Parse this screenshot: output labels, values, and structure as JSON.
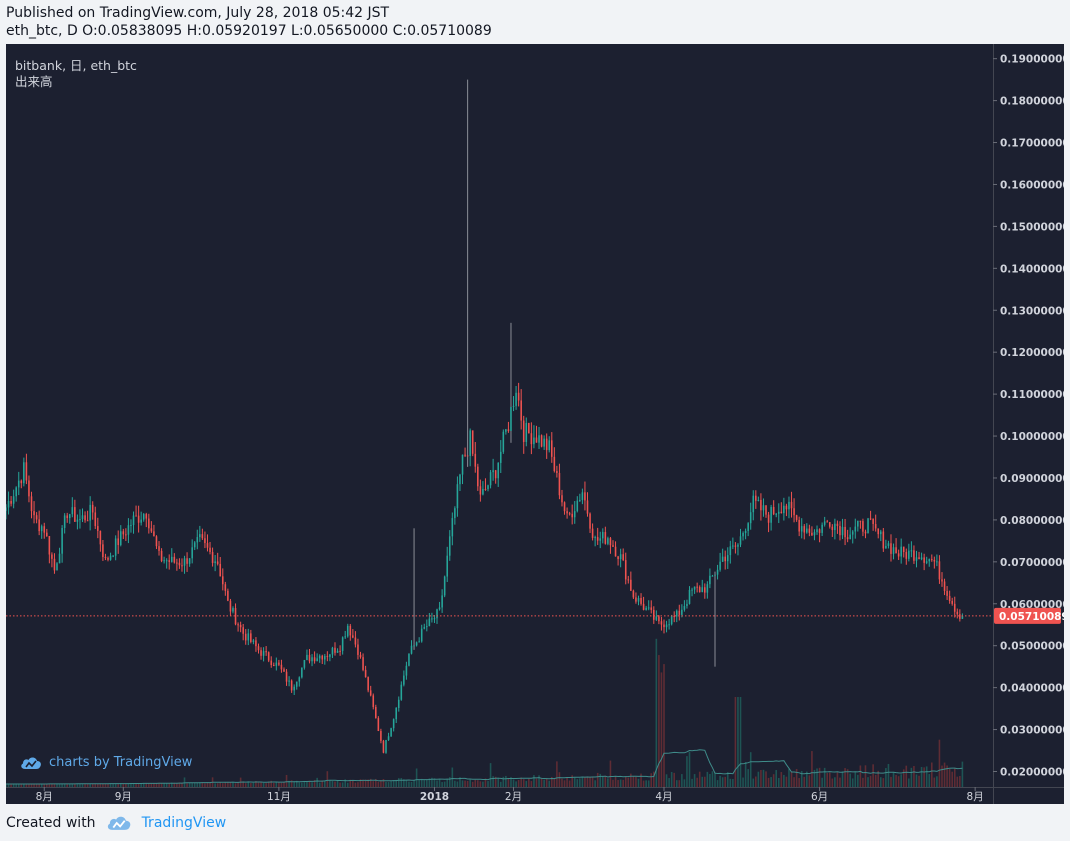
{
  "header": {
    "published": "Published on TradingView.com, July 28, 2018 05:42 JST",
    "ohlc": "eth_btc, D O:0.05838095 H:0.05920197 L:0.05650000 C:0.05710089"
  },
  "legend": {
    "symbol_line": "bitbank, 日, eth_btc",
    "volume_label": "出来高"
  },
  "watermark": {
    "text": "charts by TradingView",
    "icon": "tradingview-cloud-icon"
  },
  "footer": {
    "created_with": "Created with",
    "brand": "TradingView",
    "icon": "tradingview-cloud-icon"
  },
  "colors": {
    "background": "#1c2030",
    "up": "#26a69a",
    "down": "#ef5350",
    "price_line": "#ef5350",
    "volume_ma": "#3f8c8a",
    "axis_text": "#d1d4dc"
  },
  "chart_data": {
    "type": "candlestick",
    "symbol": "eth_btc",
    "exchange": "bitbank",
    "interval": "D",
    "last_price": "0.05710089",
    "y_ticks": [
      "0.02000000",
      "0.03000000",
      "0.04000000",
      "0.05000000",
      "0.06000000",
      "0.07000000",
      "0.08000000",
      "0.09000000",
      "0.10000000",
      "0.11000000",
      "0.12000000",
      "0.13000000",
      "0.14000000",
      "0.15000000",
      "0.16000000",
      "0.17000000",
      "0.18000000",
      "0.19000000"
    ],
    "ylim": [
      0.0163,
      0.1935
    ],
    "x_start": "2017-07-17",
    "x_end": "2018-08-08",
    "x_ticks": [
      {
        "label": "8月",
        "date": "2017-08-01"
      },
      {
        "label": "9月",
        "date": "2017-09-01"
      },
      {
        "label": "11月",
        "date": "2017-11-01"
      },
      {
        "label": "2018",
        "date": "2018-01-01"
      },
      {
        "label": "2月",
        "date": "2018-02-01"
      },
      {
        "label": "4月",
        "date": "2018-04-01"
      },
      {
        "label": "6月",
        "date": "2018-06-01"
      },
      {
        "label": "8月",
        "date": "2018-08-01"
      }
    ],
    "close_path": [
      [
        "2017-07-17",
        0.083
      ],
      [
        "2017-07-21",
        0.088
      ],
      [
        "2017-07-24",
        0.092
      ],
      [
        "2017-07-28",
        0.08
      ],
      [
        "2017-08-01",
        0.078
      ],
      [
        "2017-08-05",
        0.068
      ],
      [
        "2017-08-10",
        0.082
      ],
      [
        "2017-08-15",
        0.08
      ],
      [
        "2017-08-20",
        0.082
      ],
      [
        "2017-08-25",
        0.07
      ],
      [
        "2017-08-30",
        0.075
      ],
      [
        "2017-09-05",
        0.08
      ],
      [
        "2017-09-10",
        0.082
      ],
      [
        "2017-09-15",
        0.071
      ],
      [
        "2017-09-20",
        0.07
      ],
      [
        "2017-09-25",
        0.07
      ],
      [
        "2017-10-01",
        0.075
      ],
      [
        "2017-10-08",
        0.07
      ],
      [
        "2017-10-12",
        0.06
      ],
      [
        "2017-10-18",
        0.053
      ],
      [
        "2017-10-24",
        0.049
      ],
      [
        "2017-11-01",
        0.045
      ],
      [
        "2017-11-06",
        0.04
      ],
      [
        "2017-11-12",
        0.047
      ],
      [
        "2017-11-20",
        0.048
      ],
      [
        "2017-11-25",
        0.05
      ],
      [
        "2017-11-28",
        0.055
      ],
      [
        "2017-12-02",
        0.049
      ],
      [
        "2017-12-08",
        0.035
      ],
      [
        "2017-12-12",
        0.025
      ],
      [
        "2017-12-16",
        0.033
      ],
      [
        "2017-12-22",
        0.048
      ],
      [
        "2017-12-28",
        0.054
      ],
      [
        "2018-01-03",
        0.058
      ],
      [
        "2018-01-07",
        0.075
      ],
      [
        "2018-01-12",
        0.094
      ],
      [
        "2018-01-15",
        0.099
      ],
      [
        "2018-01-19",
        0.085
      ],
      [
        "2018-01-25",
        0.092
      ],
      [
        "2018-01-30",
        0.103
      ],
      [
        "2018-02-02",
        0.112
      ],
      [
        "2018-02-05",
        0.101
      ],
      [
        "2018-02-10",
        0.1
      ],
      [
        "2018-02-15",
        0.097
      ],
      [
        "2018-02-22",
        0.08
      ],
      [
        "2018-02-28",
        0.087
      ],
      [
        "2018-03-05",
        0.075
      ],
      [
        "2018-03-10",
        0.076
      ],
      [
        "2018-03-15",
        0.071
      ],
      [
        "2018-03-20",
        0.062
      ],
      [
        "2018-03-26",
        0.058
      ],
      [
        "2018-03-30",
        0.055
      ],
      [
        "2018-04-06",
        0.057
      ],
      [
        "2018-04-12",
        0.063
      ],
      [
        "2018-04-18",
        0.064
      ],
      [
        "2018-04-24",
        0.071
      ],
      [
        "2018-04-30",
        0.074
      ],
      [
        "2018-05-06",
        0.084
      ],
      [
        "2018-05-12",
        0.081
      ],
      [
        "2018-05-18",
        0.084
      ],
      [
        "2018-05-24",
        0.079
      ],
      [
        "2018-05-30",
        0.077
      ],
      [
        "2018-06-05",
        0.08
      ],
      [
        "2018-06-12",
        0.077
      ],
      [
        "2018-06-20",
        0.079
      ],
      [
        "2018-06-26",
        0.075
      ],
      [
        "2018-07-02",
        0.072
      ],
      [
        "2018-07-10",
        0.072
      ],
      [
        "2018-07-16",
        0.07
      ],
      [
        "2018-07-21",
        0.063
      ],
      [
        "2018-07-25",
        0.058
      ],
      [
        "2018-07-27",
        0.0571
      ]
    ],
    "wick_spikes": [
      {
        "date": "2018-01-14",
        "high": 0.185
      },
      {
        "date": "2018-01-31",
        "high": 0.127
      },
      {
        "date": "2017-12-24",
        "high": 0.078
      },
      {
        "date": "2018-04-21",
        "low": 0.045
      }
    ],
    "volume_note": "volume histogram with moving average in the lower pane, no axis scale shown"
  }
}
